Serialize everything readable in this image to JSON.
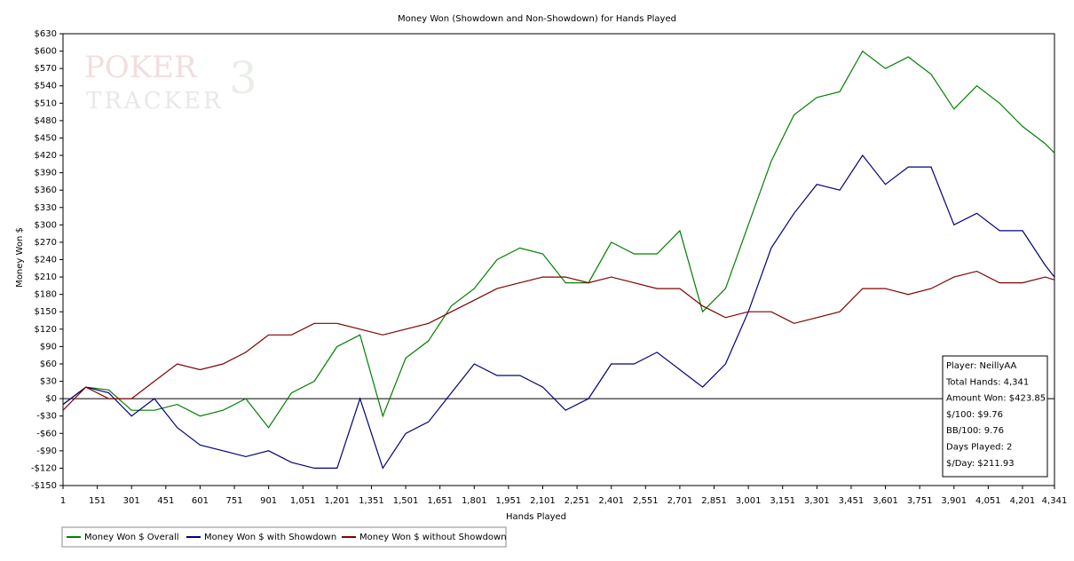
{
  "chart_data": {
    "type": "line",
    "title": "Money Won (Showdown and Non-Showdown) for Hands Played",
    "xlabel": "Hands Played",
    "ylabel": "Money Won $",
    "watermark": [
      "POKER",
      "TRACKER",
      "3"
    ],
    "x": [
      1,
      101,
      201,
      301,
      401,
      501,
      601,
      701,
      801,
      901,
      1001,
      1101,
      1201,
      1301,
      1401,
      1501,
      1601,
      1701,
      1801,
      1901,
      2001,
      2101,
      2201,
      2301,
      2401,
      2501,
      2601,
      2701,
      2801,
      2901,
      3001,
      3101,
      3201,
      3301,
      3401,
      3501,
      3601,
      3701,
      3801,
      3901,
      4001,
      4101,
      4201,
      4301,
      4341
    ],
    "series": [
      {
        "name": "Money Won $ Overall",
        "color": "#008000",
        "values": [
          -10,
          20,
          15,
          -20,
          -20,
          -10,
          -30,
          -20,
          0,
          -50,
          10,
          30,
          90,
          110,
          -30,
          70,
          100,
          160,
          190,
          240,
          260,
          250,
          200,
          200,
          270,
          250,
          250,
          290,
          150,
          190,
          300,
          410,
          490,
          520,
          530,
          600,
          570,
          590,
          560,
          500,
          540,
          510,
          470,
          440,
          424
        ]
      },
      {
        "name": "Money Won $ with Showdown",
        "color": "#000080",
        "values": [
          -10,
          20,
          10,
          -30,
          0,
          -50,
          -80,
          -90,
          -100,
          -90,
          -110,
          -120,
          -120,
          0,
          -120,
          -60,
          -40,
          10,
          60,
          40,
          40,
          20,
          -20,
          0,
          60,
          60,
          80,
          50,
          20,
          60,
          150,
          260,
          320,
          370,
          360,
          420,
          370,
          400,
          400,
          300,
          320,
          290,
          290,
          230,
          210
        ]
      },
      {
        "name": "Money Won $ without Showdown",
        "color": "#800000",
        "values": [
          -20,
          20,
          0,
          0,
          30,
          60,
          50,
          60,
          80,
          110,
          110,
          130,
          130,
          120,
          110,
          120,
          130,
          150,
          170,
          190,
          200,
          210,
          210,
          200,
          210,
          200,
          190,
          190,
          160,
          140,
          150,
          150,
          130,
          140,
          150,
          190,
          190,
          180,
          190,
          210,
          220,
          200,
          200,
          210,
          205
        ]
      }
    ],
    "xlim": [
      1,
      4341
    ],
    "xticks": [
      1,
      151,
      301,
      451,
      601,
      751,
      901,
      {
        "value": 1051,
        "label": "1,051"
      },
      {
        "value": 1201,
        "label": "1,201"
      },
      {
        "value": 1351,
        "label": "1,351"
      },
      {
        "value": 1501,
        "label": "1,501"
      },
      {
        "value": 1651,
        "label": "1,651"
      },
      {
        "value": 1801,
        "label": "1,801"
      },
      {
        "value": 1951,
        "label": "1,951"
      },
      {
        "value": 2101,
        "label": "2,101"
      },
      {
        "value": 2251,
        "label": "2,251"
      },
      {
        "value": 2401,
        "label": "2,401"
      },
      {
        "value": 2551,
        "label": "2,551"
      },
      {
        "value": 2701,
        "label": "2,701"
      },
      {
        "value": 2851,
        "label": "2,851"
      },
      {
        "value": 3001,
        "label": "3,001"
      },
      {
        "value": 3151,
        "label": "3,151"
      },
      {
        "value": 3301,
        "label": "3,301"
      },
      {
        "value": 3451,
        "label": "3,451"
      },
      {
        "value": 3601,
        "label": "3,601"
      },
      {
        "value": 3751,
        "label": "3,751"
      },
      {
        "value": 3901,
        "label": "3,901"
      },
      {
        "value": 4051,
        "label": "4,051"
      },
      {
        "value": 4201,
        "label": "4,201"
      },
      {
        "value": 4341,
        "label": "4,341"
      }
    ],
    "ylim": [
      -150,
      630
    ],
    "yticks": [
      {
        "value": -150,
        "label": "-$150"
      },
      {
        "value": -120,
        "label": "-$120"
      },
      {
        "value": -90,
        "label": "-$90"
      },
      {
        "value": -60,
        "label": "-$60"
      },
      {
        "value": -30,
        "label": "-$30"
      },
      {
        "value": 0,
        "label": "$0"
      },
      {
        "value": 30,
        "label": "$30"
      },
      {
        "value": 60,
        "label": "$60"
      },
      {
        "value": 90,
        "label": "$90"
      },
      {
        "value": 120,
        "label": "$120"
      },
      {
        "value": 150,
        "label": "$150"
      },
      {
        "value": 180,
        "label": "$180"
      },
      {
        "value": 210,
        "label": "$210"
      },
      {
        "value": 240,
        "label": "$240"
      },
      {
        "value": 270,
        "label": "$270"
      },
      {
        "value": 300,
        "label": "$300"
      },
      {
        "value": 330,
        "label": "$330"
      },
      {
        "value": 360,
        "label": "$360"
      },
      {
        "value": 390,
        "label": "$390"
      },
      {
        "value": 420,
        "label": "$420"
      },
      {
        "value": 450,
        "label": "$450"
      },
      {
        "value": 480,
        "label": "$480"
      },
      {
        "value": 510,
        "label": "$510"
      },
      {
        "value": 540,
        "label": "$540"
      },
      {
        "value": 570,
        "label": "$570"
      },
      {
        "value": 600,
        "label": "$600"
      },
      {
        "value": 630,
        "label": "$630"
      }
    ],
    "grid": false,
    "legend": "bottom-left",
    "annotations": [
      "Player: NeillyAA",
      "Total Hands: 4,341",
      "Amount Won: $423.85",
      "$/100: $9.76",
      "BB/100: 9.76",
      "Days Played: 2",
      "$/Day: $211.93"
    ]
  }
}
